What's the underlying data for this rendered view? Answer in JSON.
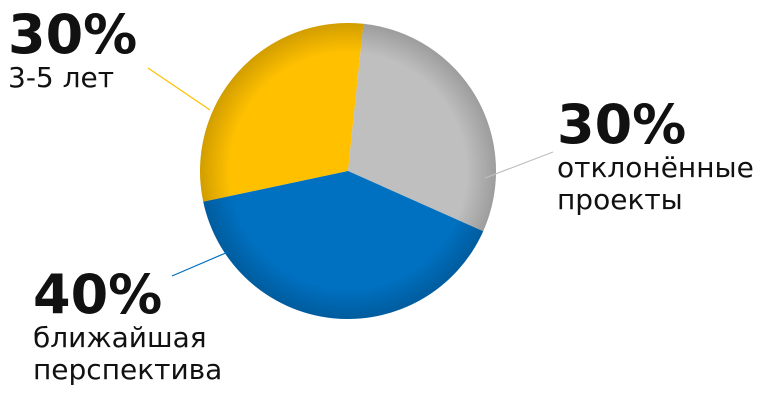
{
  "chart_data": {
    "type": "pie",
    "categories": [
      "3-5 лет",
      "отклонённые проекты",
      "ближайшая перспектива"
    ],
    "values": [
      30,
      30,
      40
    ],
    "value_labels": [
      "30%",
      "30%",
      "40%"
    ],
    "colors": [
      "#ffc000",
      "#bfbfbf",
      "#0070c0"
    ]
  }
}
